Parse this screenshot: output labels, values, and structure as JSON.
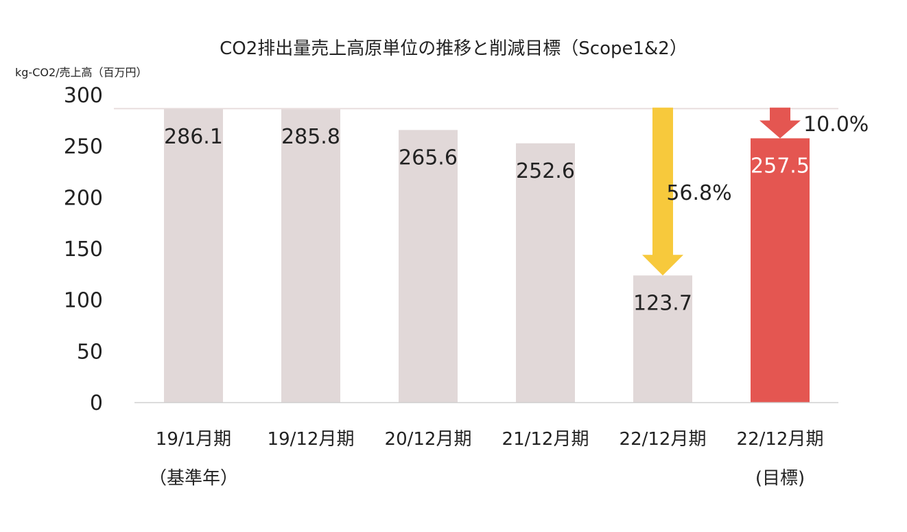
{
  "chart_data": {
    "type": "bar",
    "title": "CO2排出量売上高原単位の推移と削減目標（Scope1&2）",
    "ylabel": "kg-CO2/売上高（百万円）",
    "ylim": [
      0,
      300
    ],
    "yticks": [
      "0",
      "50",
      "100",
      "150",
      "200",
      "250",
      "300"
    ],
    "categories": [
      [
        "19/1月期",
        "（基準年）"
      ],
      [
        "19/12月期",
        ""
      ],
      [
        "20/12月期",
        ""
      ],
      [
        "21/12月期",
        ""
      ],
      [
        "22/12月期",
        ""
      ],
      [
        "22/12月期",
        "(目標)"
      ]
    ],
    "values": [
      286.1,
      285.8,
      265.6,
      252.6,
      123.7,
      257.5
    ],
    "value_labels": [
      "286.1",
      "285.8",
      "265.6",
      "252.6",
      "123.7",
      "257.5"
    ],
    "bar_colors": [
      "#e1d8d8",
      "#e1d8d8",
      "#e1d8d8",
      "#e1d8d8",
      "#e1d8d8",
      "#e45651"
    ],
    "value_label_colors": [
      "#222222",
      "#222222",
      "#222222",
      "#222222",
      "#222222",
      "#ffffff"
    ],
    "annotations": [
      {
        "name": "actual-reduction",
        "text": "56.8%",
        "category_index": 4,
        "from_value": 286.1,
        "to_value": 123.7,
        "color": "#f7c93c"
      },
      {
        "name": "target-reduction",
        "text": "10.0%",
        "category_index": 5,
        "from_value": 286.1,
        "to_value": 257.5,
        "color": "#e45651"
      }
    ],
    "grid": false
  }
}
